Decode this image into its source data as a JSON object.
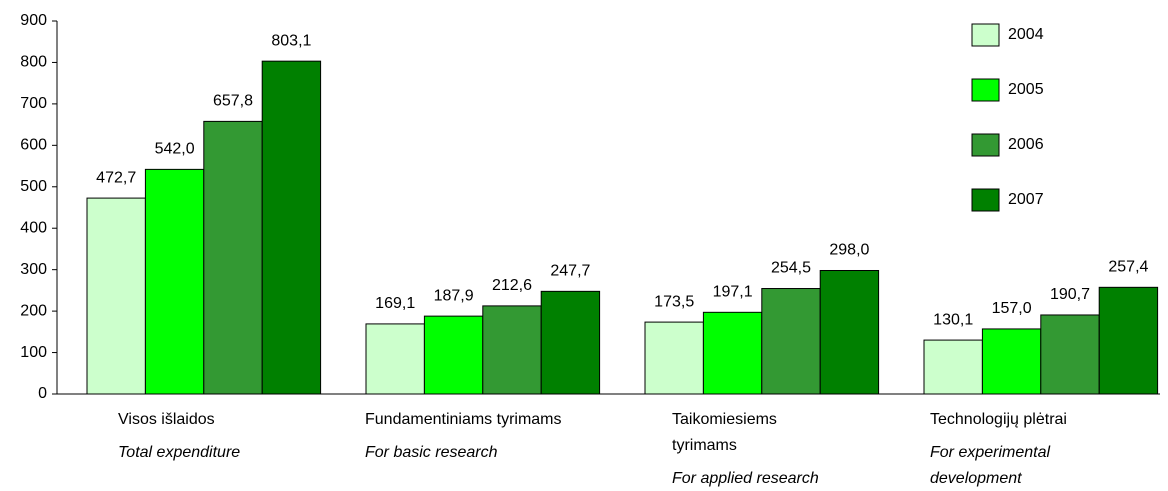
{
  "chart_data": {
    "type": "bar",
    "categories": [
      "Visos išlaidos",
      "Fundamentiniams tyrimams",
      "Taikomiesiems tyrimams",
      "Technologijų plėtrai"
    ],
    "categories_en": [
      "Total expenditure",
      "For basic research",
      "For applied research",
      "For experimental development"
    ],
    "series": [
      {
        "name": "2004",
        "color": "#ccffcc",
        "values": [
          472.7,
          169.1,
          173.5,
          130.1
        ],
        "value_labels": [
          "472,7",
          "169,1",
          "173,5",
          "130,1"
        ]
      },
      {
        "name": "2005",
        "color": "#00ff00",
        "values": [
          542.0,
          187.9,
          197.1,
          157.0
        ],
        "value_labels": [
          "542,0",
          "187,9",
          "197,1",
          "157,0"
        ]
      },
      {
        "name": "2006",
        "color": "#339933",
        "values": [
          657.8,
          212.6,
          254.5,
          190.7
        ],
        "value_labels": [
          "657,8",
          "212,6",
          "254,5",
          "190,7"
        ]
      },
      {
        "name": "2007",
        "color": "#008000",
        "values": [
          803.1,
          247.7,
          298.0,
          257.4
        ],
        "value_labels": [
          "803,1",
          "247,7",
          "298,0",
          "257,4"
        ]
      }
    ],
    "ylim": [
      0,
      900
    ],
    "yticks": [
      0,
      100,
      200,
      300,
      400,
      500,
      600,
      700,
      800,
      900
    ]
  }
}
